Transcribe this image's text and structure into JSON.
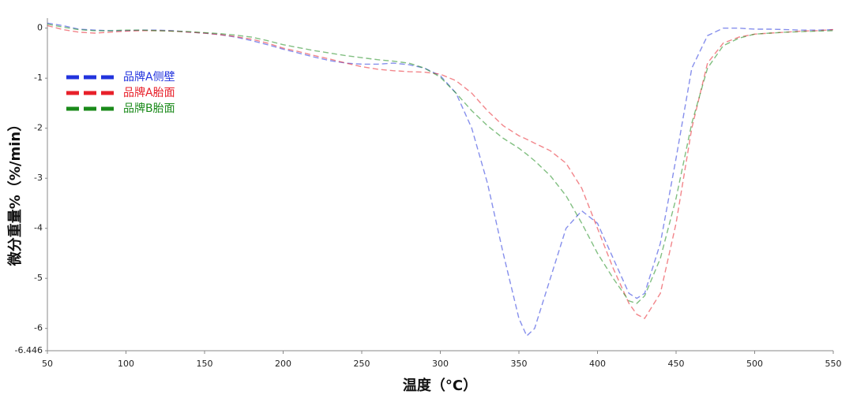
{
  "chart_data": {
    "type": "line",
    "x_label": "温度（°C）",
    "y_label": "微分重量%（%/min）",
    "x": [
      50,
      60,
      70,
      80,
      90,
      100,
      110,
      120,
      130,
      140,
      150,
      160,
      170,
      180,
      190,
      200,
      210,
      220,
      230,
      240,
      250,
      260,
      270,
      280,
      290,
      300,
      310,
      320,
      330,
      340,
      350,
      355,
      360,
      370,
      380,
      390,
      400,
      410,
      420,
      425,
      430,
      440,
      450,
      460,
      470,
      480,
      490,
      500,
      510,
      520,
      530,
      540,
      550
    ],
    "series": [
      {
        "name": "品牌A侧壁",
        "color": "#2233dd",
        "values": [
          0.1,
          0.05,
          -0.02,
          -0.04,
          -0.05,
          -0.05,
          -0.04,
          -0.04,
          -0.05,
          -0.08,
          -0.1,
          -0.13,
          -0.18,
          -0.25,
          -0.33,
          -0.42,
          -0.5,
          -0.58,
          -0.65,
          -0.7,
          -0.72,
          -0.72,
          -0.7,
          -0.73,
          -0.8,
          -0.95,
          -1.3,
          -2.0,
          -3.1,
          -4.5,
          -5.8,
          -6.15,
          -6.0,
          -5.0,
          -4.0,
          -3.65,
          -3.9,
          -4.6,
          -5.3,
          -5.4,
          -5.3,
          -4.3,
          -2.6,
          -0.8,
          -0.15,
          0.0,
          0.0,
          -0.02,
          -0.02,
          -0.03,
          -0.04,
          -0.04,
          -0.03
        ]
      },
      {
        "name": "品牌A胎面",
        "color": "#e8202a",
        "values": [
          0.05,
          -0.03,
          -0.08,
          -0.1,
          -0.08,
          -0.06,
          -0.05,
          -0.05,
          -0.06,
          -0.08,
          -0.1,
          -0.13,
          -0.17,
          -0.22,
          -0.3,
          -0.4,
          -0.47,
          -0.55,
          -0.62,
          -0.7,
          -0.77,
          -0.82,
          -0.85,
          -0.87,
          -0.88,
          -0.92,
          -1.05,
          -1.3,
          -1.65,
          -1.95,
          -2.15,
          -2.22,
          -2.3,
          -2.45,
          -2.7,
          -3.2,
          -4.0,
          -4.8,
          -5.5,
          -5.72,
          -5.8,
          -5.3,
          -3.9,
          -2.0,
          -0.7,
          -0.3,
          -0.18,
          -0.12,
          -0.1,
          -0.08,
          -0.06,
          -0.05,
          -0.03
        ]
      },
      {
        "name": "品牌B胎面",
        "color": "#1a8a1a",
        "values": [
          0.08,
          0.02,
          -0.03,
          -0.05,
          -0.05,
          -0.04,
          -0.04,
          -0.05,
          -0.06,
          -0.07,
          -0.09,
          -0.11,
          -0.14,
          -0.18,
          -0.25,
          -0.33,
          -0.39,
          -0.45,
          -0.5,
          -0.55,
          -0.59,
          -0.63,
          -0.66,
          -0.7,
          -0.8,
          -0.98,
          -1.3,
          -1.65,
          -1.95,
          -2.2,
          -2.4,
          -2.52,
          -2.65,
          -2.95,
          -3.35,
          -3.9,
          -4.5,
          -5.0,
          -5.45,
          -5.5,
          -5.35,
          -4.6,
          -3.4,
          -1.9,
          -0.8,
          -0.35,
          -0.2,
          -0.12,
          -0.1,
          -0.08,
          -0.07,
          -0.06,
          -0.05
        ]
      }
    ],
    "xlim": [
      50,
      550
    ],
    "xticks": [
      50,
      100,
      150,
      200,
      250,
      300,
      350,
      400,
      450,
      500,
      550
    ],
    "ylim": [
      -6.446,
      0.2
    ],
    "yticks": [
      0,
      -1,
      -2,
      -3,
      -4,
      -5,
      -6,
      -6.446
    ],
    "grid": false,
    "legend": "upper-left",
    "dashed": true
  }
}
